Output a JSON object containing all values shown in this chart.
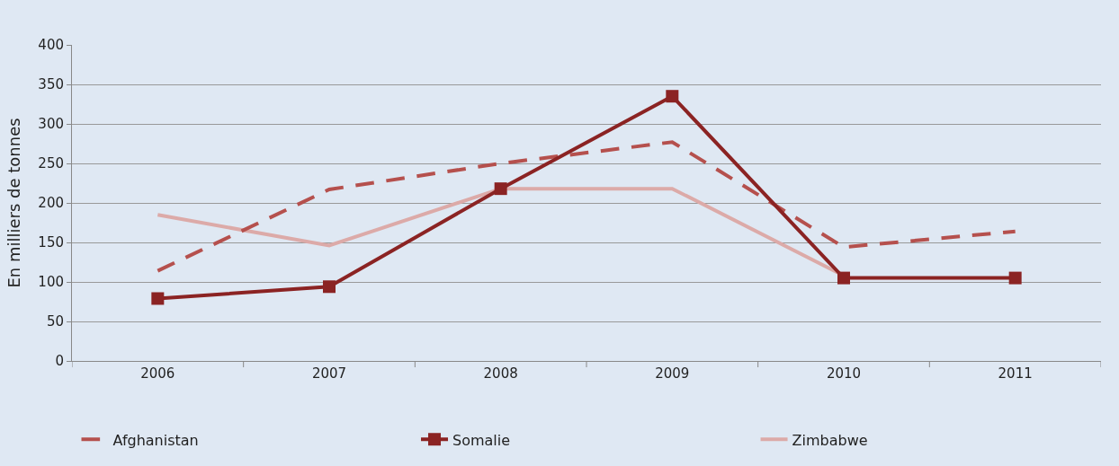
{
  "chart_data": {
    "type": "line",
    "ylabel": "En milliers de tonnes",
    "categories": [
      "2006",
      "2007",
      "2008",
      "2009",
      "2010",
      "2011"
    ],
    "series": [
      {
        "name": "Afghanistan",
        "color": "#b5504d",
        "line_style": "dashed",
        "marker": "none",
        "values": [
          114,
          217,
          250,
          277,
          144,
          164
        ]
      },
      {
        "name": "Somalie",
        "color": "#8b2323",
        "line_style": "solid",
        "marker": "square",
        "values": [
          79,
          94,
          218,
          335,
          105,
          105
        ]
      },
      {
        "name": "Zimbabwe",
        "color": "#dcaaa8",
        "line_style": "solid",
        "marker": "none",
        "values": [
          185,
          146,
          218,
          218,
          108,
          null
        ]
      }
    ],
    "ylim": [
      0,
      400
    ],
    "yticks": [
      0,
      50,
      100,
      150,
      200,
      250,
      300,
      350,
      400
    ],
    "grid": "y",
    "legend": "bottom"
  }
}
